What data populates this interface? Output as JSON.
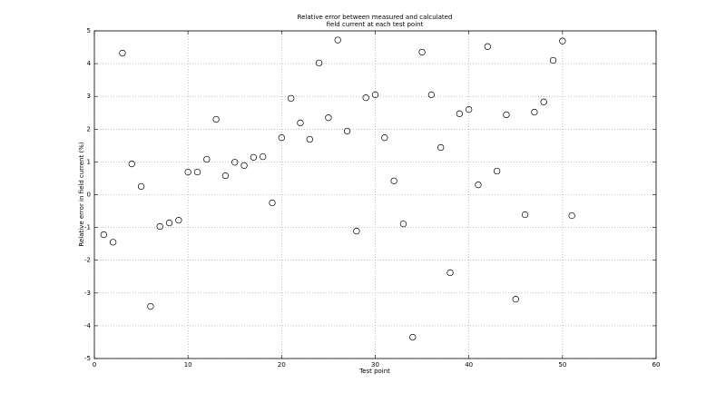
{
  "chart_data": {
    "type": "scatter",
    "title": [
      "Relative error between measured and calculated",
      "field current at each test point"
    ],
    "x_label": "Test point",
    "y_label": "Relative error in field current (%)",
    "x": [
      1,
      2,
      3,
      4,
      5,
      6,
      7,
      8,
      9,
      10,
      11,
      12,
      13,
      14,
      15,
      16,
      17,
      18,
      19,
      20,
      21,
      22,
      23,
      24,
      25,
      26,
      27,
      28,
      29,
      30,
      31,
      32,
      33,
      34,
      35,
      36,
      37,
      38,
      39,
      40,
      41,
      42,
      43,
      44,
      45,
      46,
      47,
      48,
      49,
      50,
      51
    ],
    "values": [
      -1.22,
      -1.45,
      4.32,
      0.94,
      0.25,
      -3.41,
      -0.97,
      -0.86,
      -0.78,
      0.69,
      0.69,
      1.08,
      2.3,
      0.58,
      0.99,
      0.89,
      1.14,
      1.16,
      -0.25,
      1.74,
      2.94,
      2.19,
      1.69,
      4.02,
      2.35,
      4.72,
      1.94,
      -1.11,
      2.96,
      3.05,
      1.74,
      0.42,
      -0.89,
      -4.35,
      4.35,
      3.05,
      1.44,
      -2.38,
      2.47,
      2.6,
      0.3,
      4.52,
      0.72,
      2.44,
      -3.19,
      -0.61,
      2.52,
      2.83,
      4.1,
      4.69,
      -0.64
    ],
    "color": "#000000",
    "xlim": [
      0,
      60
    ],
    "xticks": [
      0,
      10,
      20,
      30,
      40,
      50,
      60
    ],
    "ylim": [
      -5,
      5
    ],
    "yticks": [
      -5,
      -4,
      -3,
      -2,
      -1,
      0,
      1,
      2,
      3,
      4,
      5
    ],
    "grid": true
  }
}
